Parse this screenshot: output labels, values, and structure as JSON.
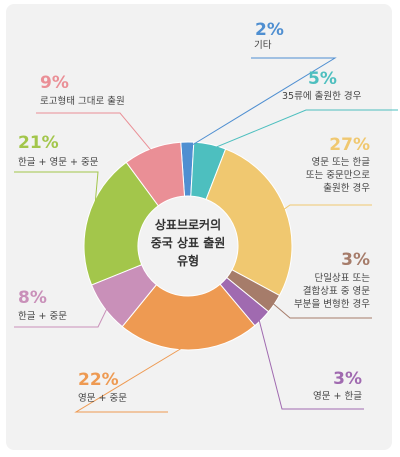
{
  "chart_data": {
    "type": "pie",
    "title_lines": [
      "상표브로커의",
      "중국 상표 출원",
      "유형"
    ],
    "slices": [
      {
        "pct": "2%",
        "value": 2,
        "label_lines": [
          "기타"
        ],
        "color": "#4f8fd1"
      },
      {
        "pct": "5%",
        "value": 5,
        "label_lines": [
          "35류에 출원한 경우"
        ],
        "color": "#4dbfbf"
      },
      {
        "pct": "27%",
        "value": 27,
        "label_lines": [
          "영문 또는 한글",
          "또는 중문만으로",
          "출원한 경우"
        ],
        "color": "#f0c870"
      },
      {
        "pct": "3%",
        "value": 3,
        "label_lines": [
          "단일상표 또는",
          "결합상표 중 영문",
          "부분을 변형한 경우"
        ],
        "color": "#a67c6a"
      },
      {
        "pct": "3%",
        "value": 3,
        "label_lines": [
          "영문 + 한글"
        ],
        "color": "#a06ab0"
      },
      {
        "pct": "22%",
        "value": 22,
        "label_lines": [
          "영문 + 중문"
        ],
        "color": "#ee9a52"
      },
      {
        "pct": "8%",
        "value": 8,
        "label_lines": [
          "한글 + 중문"
        ],
        "color": "#c990b9"
      },
      {
        "pct": "21%",
        "value": 21,
        "label_lines": [
          "한글 + 영문 + 중문"
        ],
        "color": "#a3c64b"
      },
      {
        "pct": "9%",
        "value": 9,
        "label_lines": [
          "로고형태 그대로 출원"
        ],
        "color": "#ea8f96"
      }
    ]
  }
}
